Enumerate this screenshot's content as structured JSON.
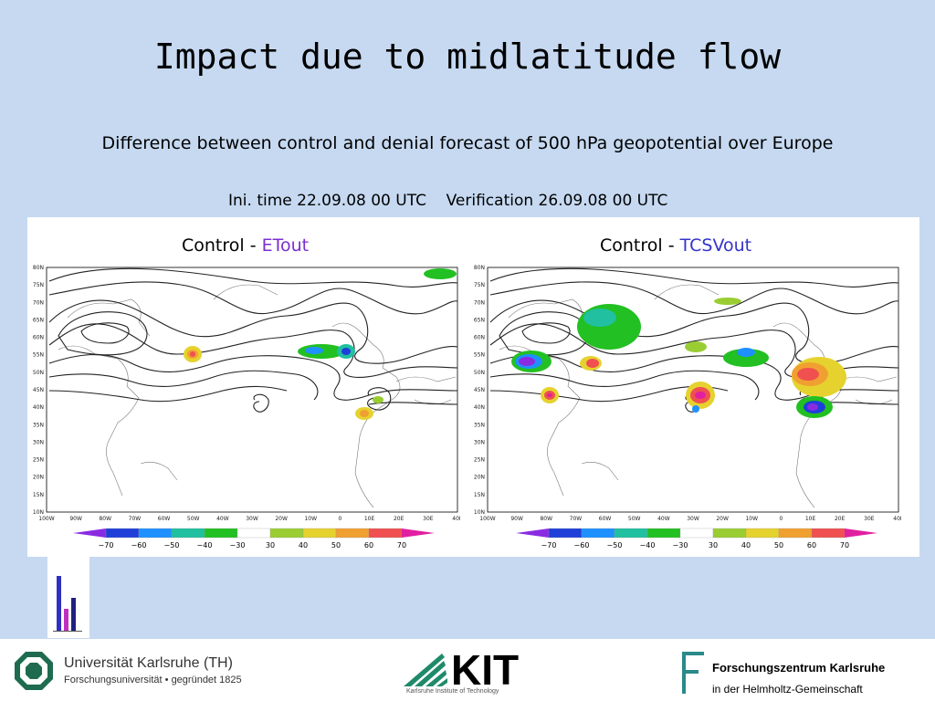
{
  "title": "Impact due to midlatitude flow",
  "subtitle": "Difference between control and denial forecast of 500 hPa geopotential over Europe",
  "init_time": "Ini. time 22.09.08 00 UTC",
  "verification": "Verification 26.09.08 00 UTC",
  "panels": [
    {
      "prefix": "Control - ",
      "experiment": "ETout"
    },
    {
      "prefix": "Control - ",
      "experiment": "TCSVout"
    }
  ],
  "latitude_labels": [
    "80N",
    "75N",
    "70N",
    "65N",
    "60N",
    "55N",
    "50N",
    "45N",
    "40N",
    "35N",
    "30N",
    "25N",
    "20N",
    "15N",
    "10N"
  ],
  "longitude_labels": [
    "100W",
    "90W",
    "80W",
    "70W",
    "60W",
    "50W",
    "40W",
    "30W",
    "20W",
    "10W",
    "0",
    "10E",
    "20E",
    "30E",
    "40E"
  ],
  "colorbar": {
    "labels": [
      "−70",
      "−60",
      "−50",
      "−40",
      "−30",
      "30",
      "40",
      "50",
      "60",
      "70"
    ],
    "colors": [
      "#8a2be2",
      "#1f3fd9",
      "#1e90ff",
      "#20c0a0",
      "#22c022",
      "#ffffff",
      "#9acd32",
      "#e6d22e",
      "#f0a030",
      "#f05050",
      "#e020a0"
    ]
  },
  "footer": {
    "university": "Universität Karlsruhe (TH)",
    "university_sub": "Forschungsuniversität • gegründet 1825",
    "kit_logo": "KIT",
    "kit_sub": "Karlsruhe Institute of Technology",
    "fz_name": "Forschungszentrum Karlsruhe",
    "fz_sub": "in der Helmholtz-Gemeinschaft"
  }
}
